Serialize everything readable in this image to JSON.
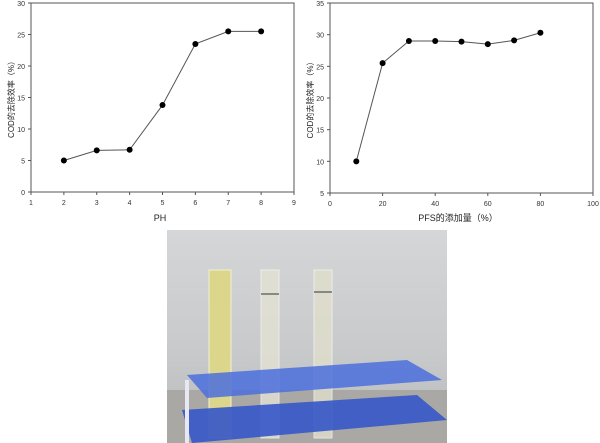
{
  "chart_data": [
    {
      "type": "line",
      "xlabel": "PH",
      "ylabel": "COD的去除效率（%）",
      "xlim": [
        1,
        9
      ],
      "ylim": [
        0,
        30
      ],
      "xticks": [
        1,
        2,
        3,
        4,
        5,
        6,
        7,
        8,
        9
      ],
      "yticks": [
        0,
        5,
        10,
        15,
        20,
        25,
        30
      ],
      "x": [
        2,
        3,
        4,
        5,
        6,
        7,
        8
      ],
      "values": [
        5,
        6.6,
        6.7,
        13.8,
        23.5,
        25.5,
        25.5
      ],
      "grid": false
    },
    {
      "type": "line",
      "xlabel": "PFS的添加量（%）",
      "ylabel": "COD的去除效率（%）",
      "xlim": [
        0,
        100
      ],
      "ylim": [
        5,
        35
      ],
      "xticks": [
        0,
        20,
        40,
        60,
        80,
        100
      ],
      "yticks": [
        5,
        10,
        15,
        20,
        25,
        30,
        35
      ],
      "x": [
        10,
        20,
        30,
        40,
        50,
        60,
        70,
        80
      ],
      "values": [
        10,
        25.5,
        29,
        29,
        28.9,
        28.5,
        29.1,
        30.3
      ],
      "grid": false
    }
  ],
  "colors": {
    "line": "#555555",
    "marker": "#000000",
    "rack": "#3a5fd0",
    "liquid": "#d8d39a"
  }
}
